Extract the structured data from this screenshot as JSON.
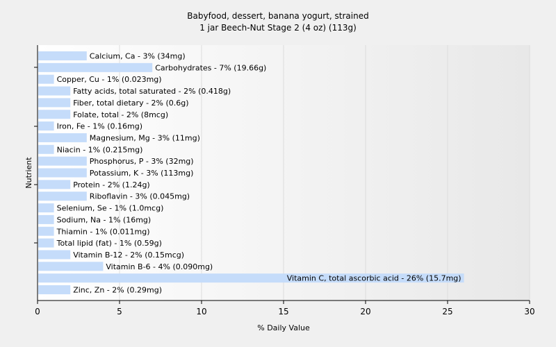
{
  "chart_data": {
    "type": "bar",
    "orientation": "horizontal",
    "title": "Babyfood, dessert, banana yogurt, strained",
    "subtitle": "1 jar Beech-Nut Stage 2 (4 oz) (113g)",
    "xlabel": "% Daily Value",
    "ylabel": "Nutrient",
    "xlim": [
      0,
      30
    ],
    "xticks": [
      0,
      5,
      10,
      15,
      20,
      25,
      30
    ],
    "grid": true,
    "bar_color": "#c5dcfa",
    "categories": [
      "Calcium, Ca",
      "Carbohydrates",
      "Copper, Cu",
      "Fatty acids, total saturated",
      "Fiber, total dietary",
      "Folate, total",
      "Iron, Fe",
      "Magnesium, Mg",
      "Niacin",
      "Phosphorus, P",
      "Potassium, K",
      "Protein",
      "Riboflavin",
      "Selenium, Se",
      "Sodium, Na",
      "Thiamin",
      "Total lipid (fat)",
      "Vitamin B-12",
      "Vitamin B-6",
      "Vitamin C, total ascorbic acid",
      "Zinc, Zn"
    ],
    "values": [
      3,
      7,
      1,
      2,
      2,
      2,
      1,
      3,
      1,
      3,
      3,
      2,
      3,
      1,
      1,
      1,
      1,
      2,
      4,
      26,
      2
    ],
    "labels": [
      "Calcium, Ca - 3% (34mg)",
      "Carbohydrates - 7% (19.66g)",
      "Copper, Cu - 1% (0.023mg)",
      "Fatty acids, total saturated - 2% (0.418g)",
      "Fiber, total dietary - 2% (0.6g)",
      "Folate, total - 2% (8mcg)",
      "Iron, Fe - 1% (0.16mg)",
      "Magnesium, Mg - 3% (11mg)",
      "Niacin - 1% (0.215mg)",
      "Phosphorus, P - 3% (32mg)",
      "Potassium, K - 3% (113mg)",
      "Protein - 2% (1.24g)",
      "Riboflavin - 3% (0.045mg)",
      "Selenium, Se - 1% (1.0mcg)",
      "Sodium, Na - 1% (16mg)",
      "Thiamin - 1% (0.011mg)",
      "Total lipid (fat) - 1% (0.59g)",
      "Vitamin B-12 - 2% (0.15mcg)",
      "Vitamin B-6 - 4% (0.090mg)",
      "Vitamin C, total ascorbic acid - 26% (15.7mg)",
      "Zinc, Zn - 2% (0.29mg)"
    ]
  }
}
